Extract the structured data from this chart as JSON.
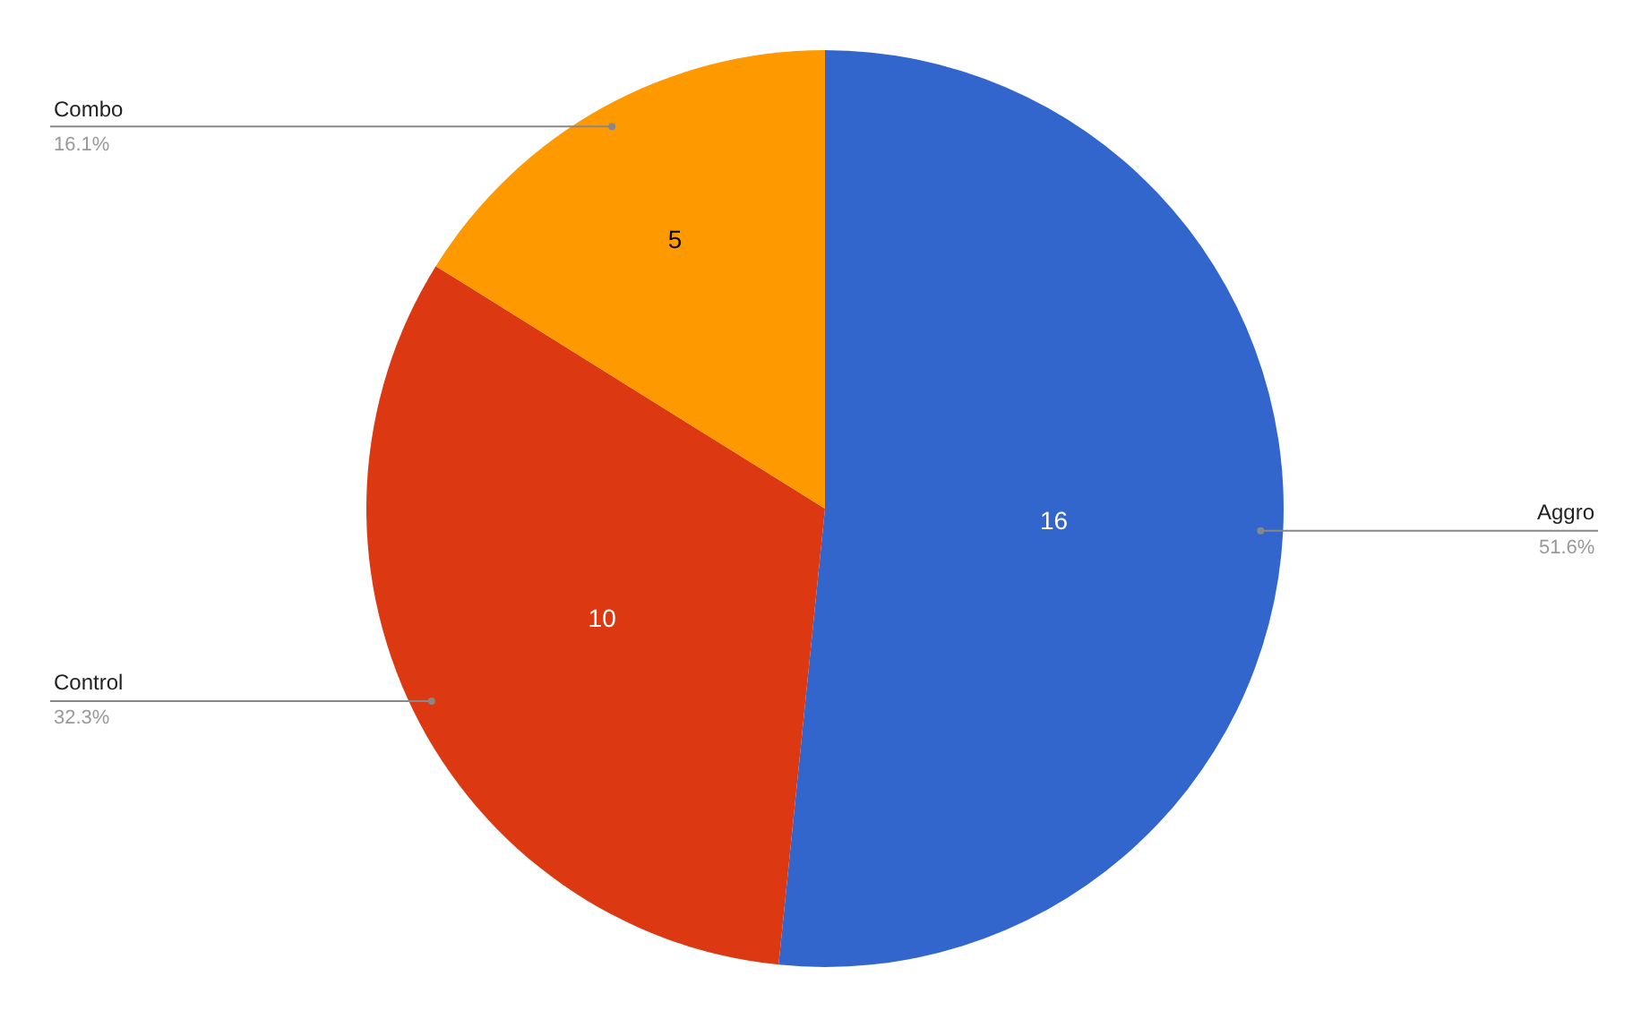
{
  "chart_data": {
    "type": "pie",
    "categories": [
      "Aggro",
      "Control",
      "Combo"
    ],
    "values": [
      16,
      10,
      5
    ],
    "colors": [
      "#3366cc",
      "#dc3912",
      "#ff9900"
    ],
    "data_labels": true,
    "annotations": [
      "51.6%",
      "32.3%",
      "16.1%"
    ],
    "legend": false
  }
}
